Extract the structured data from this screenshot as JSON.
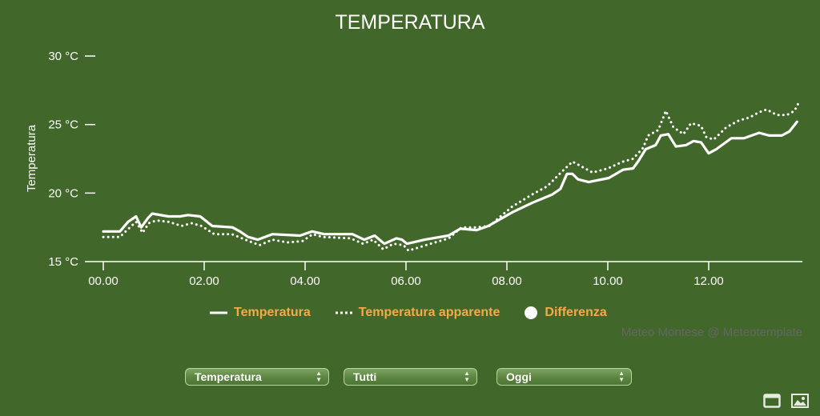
{
  "chart_data": {
    "type": "line",
    "title": "TEMPERATURA",
    "xlabel": "",
    "ylabel": "Temperatura",
    "ylim": [
      15,
      30
    ],
    "yticks": [
      "15 °C",
      "20 °C",
      "25 °C",
      "30 °C"
    ],
    "ytick_values": [
      15,
      20,
      25,
      30
    ],
    "xticks": [
      "00.00",
      "02.00",
      "04.00",
      "06.00",
      "08.00",
      "10.00",
      "12.00"
    ],
    "xtick_values": [
      0,
      2,
      4,
      6,
      8,
      10,
      12
    ],
    "xlim": [
      -0.3,
      13.85
    ],
    "grid": false,
    "legend_position": "bottom",
    "series": [
      {
        "name": "Temperatura",
        "style": "solid",
        "color": "#ffffff",
        "points": [
          [
            0,
            17.2
          ],
          [
            0.33,
            17.2
          ],
          [
            0.49,
            17.9
          ],
          [
            0.65,
            18.3
          ],
          [
            0.75,
            17.5
          ],
          [
            0.89,
            18.2
          ],
          [
            0.97,
            18.5
          ],
          [
            1.29,
            18.3
          ],
          [
            1.52,
            18.3
          ],
          [
            1.68,
            18.4
          ],
          [
            1.92,
            18.3
          ],
          [
            2.16,
            17.6
          ],
          [
            2.56,
            17.5
          ],
          [
            2.71,
            17.2
          ],
          [
            2.87,
            16.8
          ],
          [
            3.06,
            16.6
          ],
          [
            3.35,
            17.0
          ],
          [
            3.9,
            16.9
          ],
          [
            4.14,
            17.2
          ],
          [
            4.38,
            17.0
          ],
          [
            4.94,
            17.0
          ],
          [
            5.17,
            16.6
          ],
          [
            5.38,
            16.9
          ],
          [
            5.57,
            16.3
          ],
          [
            5.81,
            16.7
          ],
          [
            5.92,
            16.6
          ],
          [
            6.02,
            16.3
          ],
          [
            6.37,
            16.6
          ],
          [
            6.84,
            16.9
          ],
          [
            7.08,
            17.4
          ],
          [
            7.4,
            17.3
          ],
          [
            7.63,
            17.6
          ],
          [
            8.11,
            18.6
          ],
          [
            8.51,
            19.3
          ],
          [
            8.9,
            19.9
          ],
          [
            9.06,
            20.3
          ],
          [
            9.19,
            21.4
          ],
          [
            9.3,
            21.4
          ],
          [
            9.41,
            21.0
          ],
          [
            9.62,
            20.8
          ],
          [
            10.02,
            21.1
          ],
          [
            10.3,
            21.7
          ],
          [
            10.5,
            21.8
          ],
          [
            10.6,
            22.3
          ],
          [
            10.75,
            23.2
          ],
          [
            10.95,
            23.5
          ],
          [
            11.05,
            24.2
          ],
          [
            11.2,
            24.3
          ],
          [
            11.35,
            23.4
          ],
          [
            11.55,
            23.5
          ],
          [
            11.7,
            23.8
          ],
          [
            11.85,
            23.7
          ],
          [
            12.0,
            22.9
          ],
          [
            12.15,
            23.2
          ],
          [
            12.45,
            24.0
          ],
          [
            12.7,
            24.0
          ],
          [
            13.0,
            24.4
          ],
          [
            13.2,
            24.2
          ],
          [
            13.45,
            24.2
          ],
          [
            13.6,
            24.5
          ],
          [
            13.75,
            25.2
          ]
        ]
      },
      {
        "name": "Temperatura apparente",
        "style": "dotted",
        "color": "#ffffff",
        "points": [
          [
            0,
            16.8
          ],
          [
            0.33,
            16.8
          ],
          [
            0.5,
            17.4
          ],
          [
            0.65,
            17.9
          ],
          [
            0.78,
            17.1
          ],
          [
            0.9,
            17.8
          ],
          [
            1.05,
            18.0
          ],
          [
            1.3,
            17.9
          ],
          [
            1.55,
            17.6
          ],
          [
            1.75,
            17.8
          ],
          [
            1.95,
            17.6
          ],
          [
            2.2,
            17.0
          ],
          [
            2.55,
            17.0
          ],
          [
            2.75,
            16.7
          ],
          [
            2.95,
            16.4
          ],
          [
            3.1,
            16.2
          ],
          [
            3.35,
            16.6
          ],
          [
            3.65,
            16.4
          ],
          [
            3.95,
            16.5
          ],
          [
            4.15,
            17.0
          ],
          [
            4.35,
            16.8
          ],
          [
            4.9,
            16.7
          ],
          [
            5.15,
            16.3
          ],
          [
            5.35,
            16.6
          ],
          [
            5.55,
            15.9
          ],
          [
            5.75,
            16.3
          ],
          [
            5.95,
            16.2
          ],
          [
            6.05,
            15.8
          ],
          [
            6.4,
            16.2
          ],
          [
            6.85,
            16.7
          ],
          [
            7.1,
            17.5
          ],
          [
            7.4,
            17.5
          ],
          [
            7.65,
            17.6
          ],
          [
            8.1,
            19.0
          ],
          [
            8.5,
            19.9
          ],
          [
            8.8,
            20.5
          ],
          [
            9.1,
            21.6
          ],
          [
            9.3,
            22.3
          ],
          [
            9.5,
            21.9
          ],
          [
            9.7,
            21.5
          ],
          [
            10.0,
            21.8
          ],
          [
            10.3,
            22.3
          ],
          [
            10.5,
            22.5
          ],
          [
            10.7,
            23.3
          ],
          [
            10.8,
            24.2
          ],
          [
            11.0,
            24.6
          ],
          [
            11.15,
            26.0
          ],
          [
            11.3,
            24.8
          ],
          [
            11.5,
            24.3
          ],
          [
            11.65,
            25.1
          ],
          [
            11.85,
            24.9
          ],
          [
            11.95,
            24.1
          ],
          [
            12.1,
            23.9
          ],
          [
            12.35,
            24.8
          ],
          [
            12.6,
            25.3
          ],
          [
            12.8,
            25.5
          ],
          [
            13.0,
            25.9
          ],
          [
            13.15,
            26.1
          ],
          [
            13.35,
            25.7
          ],
          [
            13.55,
            25.7
          ],
          [
            13.7,
            26.0
          ],
          [
            13.8,
            26.7
          ]
        ]
      }
    ],
    "legend": [
      {
        "name": "Temperatura",
        "symbol": "solid-line"
      },
      {
        "name": "Temperatura apparente",
        "symbol": "dotted-line"
      },
      {
        "name": "Differenza",
        "symbol": "circle"
      }
    ]
  },
  "title": "TEMPERATURA",
  "yaxis_title": "Temperatura",
  "legend": {
    "items": [
      "Temperatura",
      "Temperatura apparente",
      "Differenza"
    ],
    "label_color": "#f7a948"
  },
  "credits": "Meteo Montese @ Meteotemplate",
  "controls": {
    "parameter_select": "Temperatura",
    "station_select": "Tutti",
    "period_select": "Oggi"
  },
  "icons": {
    "fullscreen": "window-icon",
    "export_image": "image-icon"
  },
  "colors": {
    "background": "#42672b",
    "text": "#ffffff",
    "legend_label": "#f7a948",
    "credits": "#666666"
  }
}
